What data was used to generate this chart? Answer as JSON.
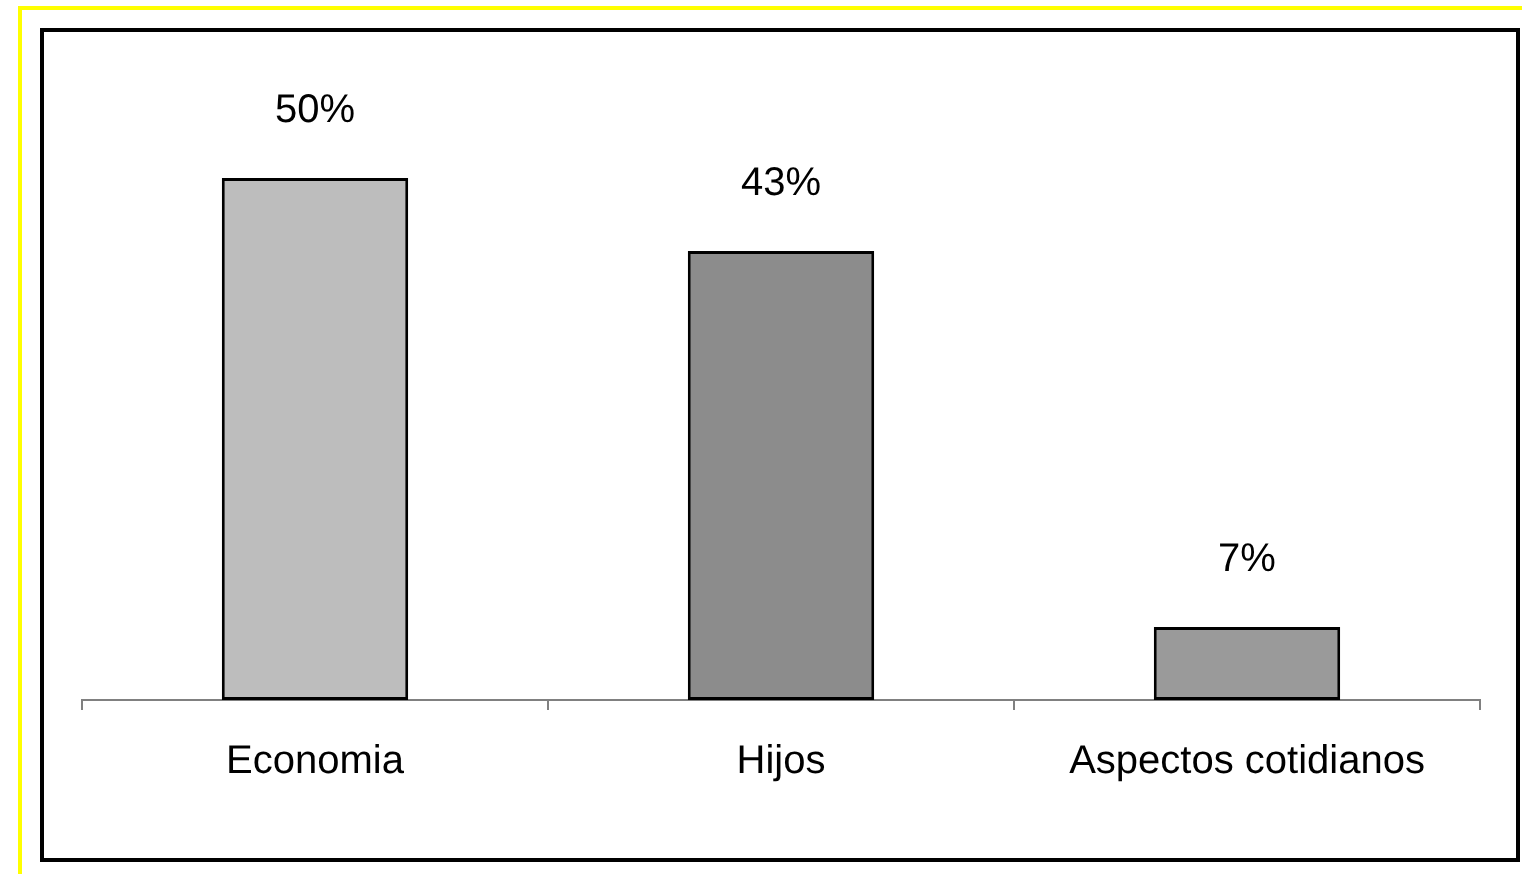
{
  "chart_data": {
    "type": "bar",
    "categories": [
      "Economia",
      "Hijos",
      "Aspectos cotidianos"
    ],
    "values": [
      50,
      43,
      7
    ],
    "colors": [
      "#bdbdbd",
      "#8c8c8c",
      "#9a9a9a"
    ],
    "value_labels": [
      "50%",
      "43%",
      "7%"
    ],
    "tick_labels": "x"
  }
}
